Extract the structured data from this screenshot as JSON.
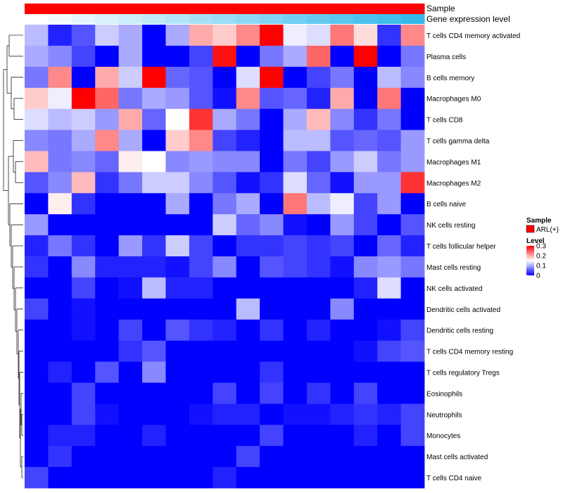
{
  "chart_data": {
    "type": "heatmap",
    "annotation_tracks": [
      "Sample",
      "Gene expression level"
    ],
    "sample_track_color": "#FF0000",
    "expression_track_colors": [
      "#FFFFFF",
      "#F2FAFE",
      "#E6F6FC",
      "#D9F1FB",
      "#CCEDFA",
      "#BFE9F9",
      "#B3E5F8",
      "#A6E0F6",
      "#99DCF5",
      "#8DD8F4",
      "#80D3F3",
      "#73CFF1",
      "#66CBF0",
      "#59C7EF",
      "#4DC2EE",
      "#40BEEC",
      "#33BAEB",
      "#26B5EA",
      "#1AB1E9"
    ],
    "rows": [
      "T cells CD4 memory activated",
      "Plasma cells",
      "B cells memory",
      "Macrophages M0",
      "T cells CD8",
      "T cells gamma delta",
      "Macrophages M1",
      "Macrophages M2",
      "B cells naive",
      "NK cells resting",
      "T cells follicular helper",
      "Mast cells resting",
      "NK cells activated",
      "Dendritic cells activated",
      "Dendritic cells resting",
      "T cells CD4 memory resting",
      "T cells regulatory  Tregs",
      "Eosinophils",
      "Neutrophils",
      "Monocytes",
      "Mast cells activated",
      "T cells CD4 naive"
    ],
    "values": [
      [
        0.11,
        0.02,
        0.05,
        0.12,
        0.1,
        0.0,
        0.1,
        0.2,
        0.18,
        0.22,
        0.3,
        0.14,
        0.13,
        0.23,
        0.17,
        0.03,
        0.22
      ],
      [
        0.1,
        0.08,
        0.04,
        0.0,
        0.1,
        0.0,
        0.0,
        0.04,
        0.29,
        0.0,
        0.07,
        0.1,
        0.24,
        0.0,
        0.3,
        0.0,
        0.07
      ],
      [
        0.07,
        0.22,
        0.0,
        0.2,
        0.12,
        0.3,
        0.06,
        0.05,
        0.0,
        0.13,
        0.3,
        0.0,
        0.04,
        0.07,
        0.0,
        0.11,
        0.08
      ],
      [
        0.18,
        0.14,
        0.3,
        0.24,
        0.07,
        0.1,
        0.09,
        0.05,
        0.01,
        0.22,
        0.05,
        0.06,
        0.02,
        0.2,
        0.0,
        0.23,
        0.0
      ],
      [
        0.13,
        0.11,
        0.12,
        0.09,
        0.2,
        0.06,
        0.15,
        0.27,
        0.1,
        0.07,
        0.0,
        0.1,
        0.19,
        0.08,
        0.03,
        0.07,
        0.0
      ],
      [
        0.08,
        0.07,
        0.1,
        0.22,
        0.1,
        0.0,
        0.18,
        0.22,
        0.04,
        0.02,
        0.0,
        0.11,
        0.11,
        0.05,
        0.06,
        0.05,
        0.09
      ],
      [
        0.19,
        0.07,
        0.08,
        0.06,
        0.16,
        0.15,
        0.08,
        0.09,
        0.08,
        0.08,
        0.0,
        0.07,
        0.04,
        0.09,
        0.12,
        0.07,
        0.09
      ],
      [
        0.05,
        0.08,
        0.19,
        0.03,
        0.07,
        0.12,
        0.12,
        0.08,
        0.05,
        0.01,
        0.03,
        0.13,
        0.06,
        0.01,
        0.09,
        0.09,
        0.27
      ],
      [
        0.0,
        0.16,
        0.03,
        0.0,
        0.0,
        0.0,
        0.1,
        0.0,
        0.07,
        0.1,
        0.0,
        0.23,
        0.11,
        0.14,
        0.04,
        0.09,
        0.0
      ],
      [
        0.09,
        0.0,
        0.0,
        0.0,
        0.0,
        0.0,
        0.0,
        0.0,
        0.12,
        0.06,
        0.08,
        0.01,
        0.0,
        0.09,
        0.04,
        0.0,
        0.05
      ],
      [
        0.02,
        0.07,
        0.03,
        0.0,
        0.09,
        0.03,
        0.12,
        0.04,
        0.0,
        0.03,
        0.03,
        0.04,
        0.03,
        0.04,
        0.0,
        0.06,
        0.02
      ],
      [
        0.03,
        0.0,
        0.08,
        0.02,
        0.02,
        0.02,
        0.01,
        0.04,
        0.08,
        0.0,
        0.05,
        0.04,
        0.03,
        0.01,
        0.08,
        0.09,
        0.07
      ],
      [
        0.0,
        0.0,
        0.04,
        0.0,
        0.01,
        0.11,
        0.02,
        0.02,
        0.0,
        0.0,
        0.0,
        0.0,
        0.0,
        0.0,
        0.02,
        0.13,
        0.0
      ],
      [
        0.04,
        0.0,
        0.01,
        0.0,
        0.0,
        0.0,
        0.0,
        0.0,
        0.0,
        0.11,
        0.0,
        0.0,
        0.0,
        0.08,
        0.0,
        0.0,
        0.0
      ],
      [
        0.0,
        0.0,
        0.01,
        0.0,
        0.04,
        0.0,
        0.05,
        0.03,
        0.02,
        0.0,
        0.03,
        0.0,
        0.02,
        0.0,
        0.0,
        0.01,
        0.04
      ],
      [
        0.0,
        0.0,
        0.0,
        0.0,
        0.03,
        0.05,
        0.0,
        0.0,
        0.0,
        0.0,
        0.0,
        0.0,
        0.0,
        0.0,
        0.01,
        0.04,
        0.05
      ],
      [
        0.0,
        0.02,
        0.0,
        0.05,
        0.0,
        0.08,
        0.0,
        0.0,
        0.0,
        0.0,
        0.03,
        0.0,
        0.0,
        0.0,
        0.0,
        0.0,
        0.0
      ],
      [
        0.0,
        0.0,
        0.04,
        0.0,
        0.0,
        0.0,
        0.0,
        0.0,
        0.04,
        0.0,
        0.04,
        0.0,
        0.03,
        0.0,
        0.04,
        0.0,
        0.0
      ],
      [
        0.0,
        0.0,
        0.04,
        0.01,
        0.0,
        0.0,
        0.0,
        0.01,
        0.02,
        0.02,
        0.0,
        0.01,
        0.01,
        0.02,
        0.03,
        0.02,
        0.04
      ],
      [
        0.0,
        0.02,
        0.02,
        0.0,
        0.0,
        0.02,
        0.0,
        0.0,
        0.0,
        0.0,
        0.04,
        0.0,
        0.0,
        0.0,
        0.02,
        0.0,
        0.04
      ],
      [
        0.0,
        0.03,
        0.0,
        0.0,
        0.0,
        0.0,
        0.0,
        0.0,
        0.0,
        0.04,
        0.0,
        0.0,
        0.0,
        0.0,
        0.0,
        0.0,
        0.0
      ],
      [
        0.04,
        0.0,
        0.0,
        0.0,
        0.0,
        0.0,
        0.0,
        0.0,
        0.02,
        0.0,
        0.0,
        0.0,
        0.0,
        0.0,
        0.0,
        0.0,
        0.0
      ]
    ],
    "color_scale": {
      "low": "#0000FF",
      "mid": "#FFFFFF",
      "high": "#FF0000",
      "min": 0,
      "mid_value": 0.15,
      "max": 0.3
    },
    "legend": {
      "sample_title": "Sample",
      "sample_item": "ARL(+)",
      "level_title": "Level",
      "level_ticks": [
        "0.3",
        "0.2",
        "0.1",
        "0"
      ]
    }
  }
}
